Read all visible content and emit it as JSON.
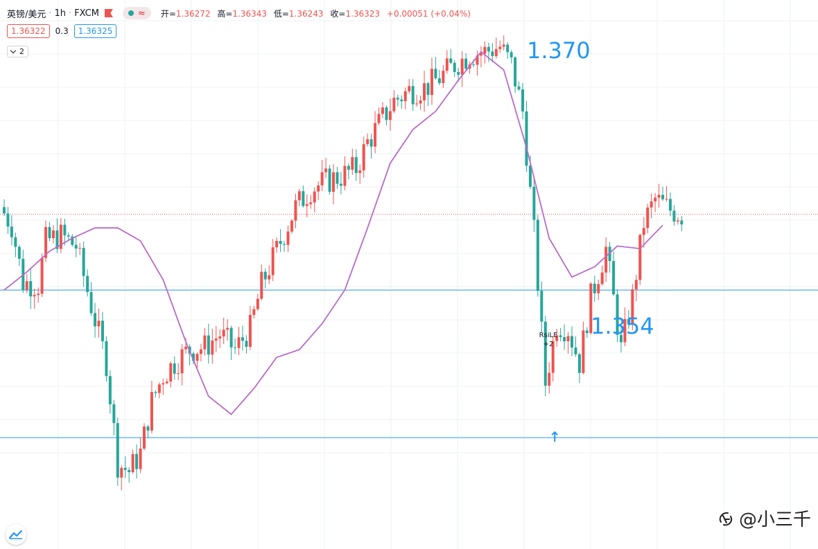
{
  "header": {
    "symbol": "英镑/美元",
    "interval": "1h",
    "broker": "FXCM",
    "ohlc": {
      "open_label": "开=",
      "open": "1.36272",
      "high_label": "高=",
      "high": "1.36343",
      "low_label": "低=",
      "low": "1.36243",
      "close_label": "收=",
      "close": "1.36323",
      "change": "+0.00051 (+0.04%)"
    },
    "bid": "1.36322",
    "spread": "0.3",
    "ask": "1.36325",
    "indicator_count": "2"
  },
  "annotations": {
    "high_label": "1.370",
    "low_label": "1.354",
    "signal_name": "RsiLE",
    "signal_qty": "+2"
  },
  "watermark": "@小三千",
  "colors": {
    "up": "#ef5350",
    "down": "#26a69a",
    "ma": "#b86ac9",
    "hline": "#2196f3",
    "grid": "#eef0f3",
    "last_price": "#ef5350"
  },
  "chart_data": {
    "type": "candlestick",
    "interval": "1h",
    "ylim": [
      1.3503,
      1.3715
    ],
    "hlines": [
      1.3546,
      1.3603
    ],
    "last_price": 1.36323,
    "ma": [
      1.3603,
      1.361,
      1.3618,
      1.3623,
      1.3627,
      1.3627,
      1.3622,
      1.3607,
      1.3583,
      1.3562,
      1.3555,
      1.3565,
      1.3577,
      1.358,
      1.359,
      1.3603,
      1.3627,
      1.3652,
      1.3665,
      1.3672,
      1.3684,
      1.3695,
      1.3688,
      1.3658,
      1.3623,
      1.3608,
      1.3612,
      1.362,
      1.3619,
      1.3628
    ],
    "ma_index": [
      0,
      6,
      12,
      18,
      24,
      30,
      36,
      42,
      48,
      54,
      60,
      66,
      72,
      78,
      84,
      90,
      96,
      102,
      108,
      114,
      120,
      126,
      132,
      138,
      144,
      150,
      156,
      162,
      168,
      174
    ]
  }
}
